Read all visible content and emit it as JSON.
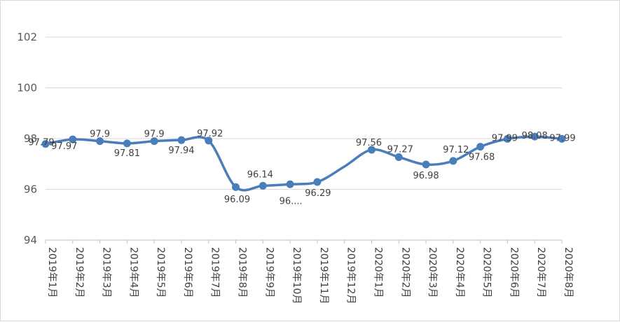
{
  "chart_data": {
    "type": "line",
    "title": "",
    "xlabel": "",
    "ylabel": "",
    "ylim": [
      94,
      102
    ],
    "yticks": [
      "94",
      "96",
      "98",
      "100",
      "102"
    ],
    "grid": true,
    "smooth": true,
    "line_color": "#4a7ebb",
    "categories": [
      "2019年1月",
      "2019年2月",
      "2019年3月",
      "2019年4月",
      "2019年5月",
      "2019年6月",
      "2019年7月",
      "2019年8月",
      "2019年9月",
      "2019年10月",
      "2019年11月",
      "2019年12月",
      "2020年1月",
      "2020年2月",
      "2020年3月",
      "2020年4月",
      "2020年5月",
      "2020年6月",
      "2020年7月",
      "2020年8月"
    ],
    "series": [
      {
        "values": [
          97.79,
          97.97,
          97.9,
          97.81,
          97.9,
          97.94,
          97.92,
          96.09,
          96.14,
          96.2,
          96.29,
          96.9,
          97.56,
          97.27,
          96.98,
          97.12,
          97.68,
          97.99,
          98.08,
          97.99
        ],
        "labels": [
          "97.79",
          "97.97",
          "97.9",
          "97.81",
          "97.9",
          "97.94",
          "97.92",
          "96.09",
          "96.14",
          "96....",
          "96.29",
          "",
          "97.56",
          "97.27",
          "96.98",
          "97.12",
          "97.68",
          "97.99",
          "98.08",
          "97.99"
        ]
      }
    ]
  }
}
